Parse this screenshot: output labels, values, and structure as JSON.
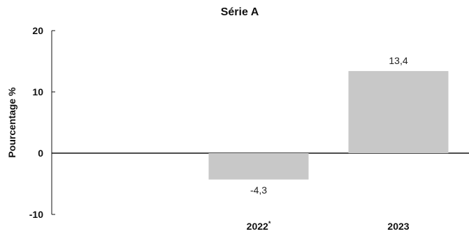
{
  "chart_data": {
    "type": "bar",
    "title": "Série A",
    "ylabel": "Pourcentage %",
    "xlabel": "",
    "categories": [
      {
        "label": "2022",
        "marker": "*"
      },
      {
        "label": "2023",
        "marker": ""
      }
    ],
    "values": [
      -4.3,
      13.4
    ],
    "data_labels": [
      "-4,3",
      "13,4"
    ],
    "yticks": [
      20,
      10,
      0,
      -10
    ],
    "ytick_labels": [
      "20",
      "10",
      "0",
      "-10"
    ],
    "ylim": [
      -10,
      20
    ],
    "grid": false,
    "bar_color": "#c8c8c8"
  }
}
